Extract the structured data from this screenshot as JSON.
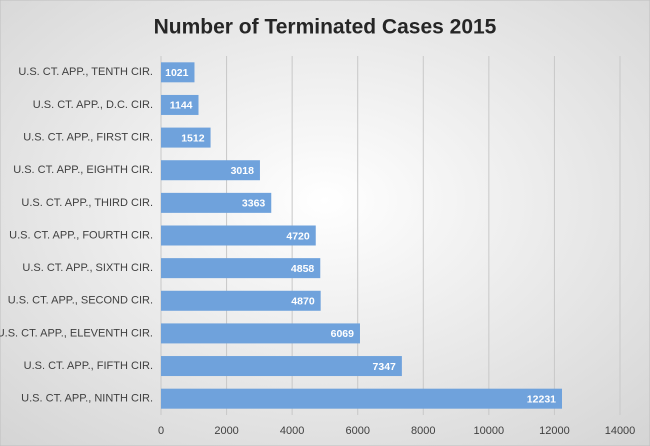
{
  "chart_data": {
    "type": "barh",
    "title": "Number of Terminated Cases 2015",
    "categories": [
      "U.S. CT. APP., TENTH CIR.",
      "U.S. CT. APP., D.C. CIR.",
      "U.S. CT. APP., FIRST CIR.",
      "U.S. CT. APP., EIGHTH CIR.",
      "U.S. CT. APP., THIRD CIR.",
      "U.S. CT. APP., FOURTH CIR.",
      "U.S. CT. APP., SIXTH CIR.",
      "U.S. CT. APP., SECOND CIR.",
      "U.S. CT. APP., ELEVENTH CIR.",
      "U.S. CT. APP., FIFTH CIR.",
      "U.S. CT. APP., NINTH CIR."
    ],
    "values": [
      1021,
      1144,
      1512,
      3018,
      3363,
      4720,
      4858,
      4870,
      6069,
      7347,
      12231
    ],
    "color": "#6fa2dc",
    "xlim": [
      0,
      14000
    ],
    "xticks": [
      0,
      2000,
      4000,
      6000,
      8000,
      10000,
      12000,
      14000
    ],
    "grid": true
  }
}
